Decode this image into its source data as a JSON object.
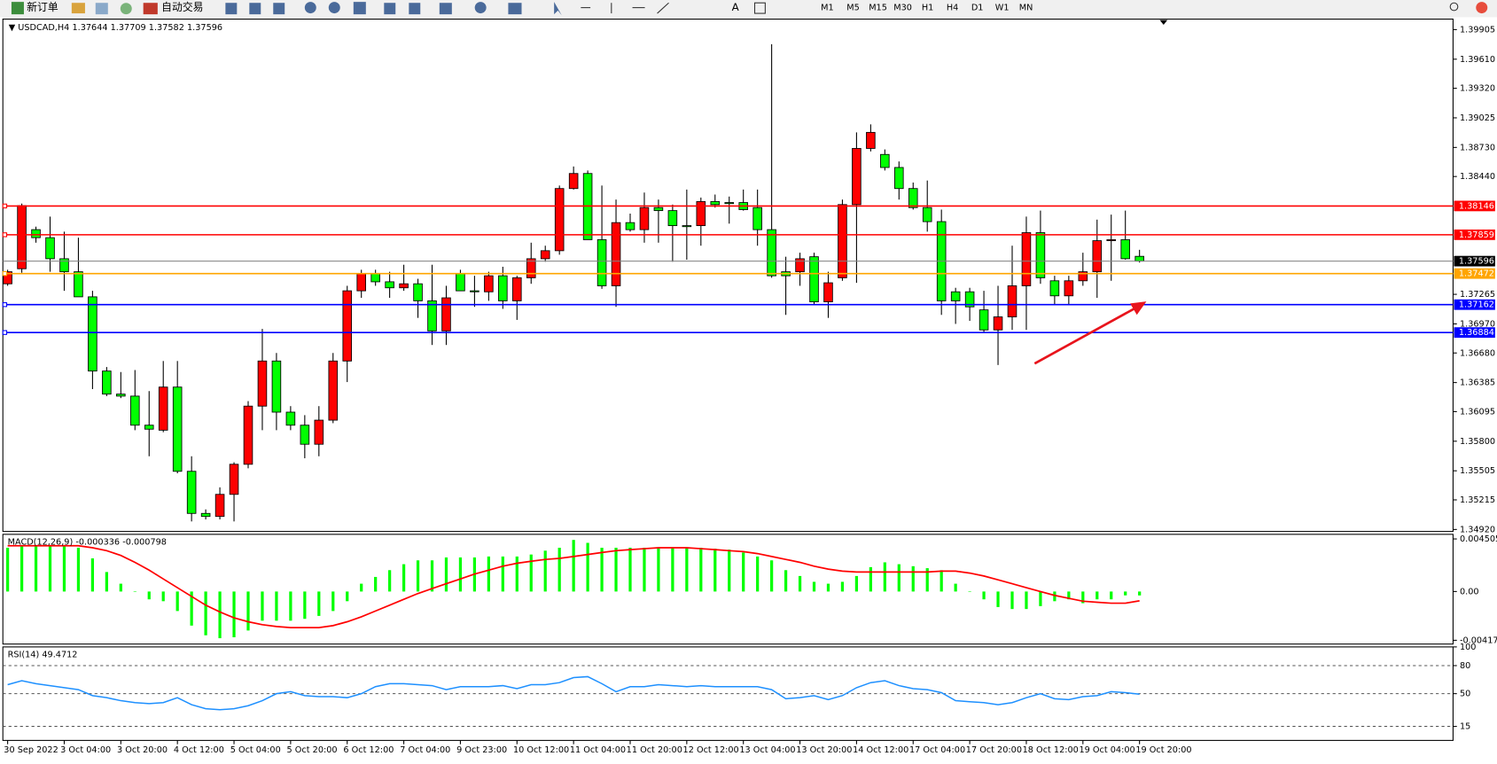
{
  "toolbar": {
    "new_order": "新订单",
    "auto_trading": "自动交易",
    "timeframes": [
      "M1",
      "M5",
      "M15",
      "M30",
      "H1",
      "H4",
      "D1",
      "W1",
      "MN"
    ]
  },
  "chart_data": [
    {
      "type": "candlestick",
      "title": "USDCAD,H4",
      "up_color": "#ff0000",
      "down_color": "#00ff00",
      "categories": [
        "30 Sep 2022",
        null,
        null,
        null,
        "3 Oct 04:00",
        null,
        null,
        null,
        "3 Oct 20:00",
        null,
        null,
        null,
        "4 Oct 12:00",
        null,
        null,
        null,
        "5 Oct 04:00",
        null,
        null,
        null,
        "5 Oct 20:00",
        null,
        null,
        null,
        "6 Oct 12:00",
        null,
        null,
        null,
        "7 Oct 04:00",
        null,
        null,
        null,
        "9 Oct 23:00",
        null,
        null,
        null,
        "10 Oct 12:00",
        null,
        null,
        null,
        "11 Oct 04:00",
        null,
        null,
        null,
        "11 Oct 20:00",
        null,
        null,
        null,
        "12 Oct 12:00",
        null,
        null,
        null,
        "13 Oct 04:00",
        null,
        null,
        null,
        "13 Oct 20:00",
        null,
        null,
        null,
        "14 Oct 12:00",
        null,
        null,
        null,
        "17 Oct 04:00",
        null,
        null,
        null,
        "17 Oct 20:00",
        null,
        null,
        null,
        "18 Oct 12:00",
        null,
        null,
        null,
        "19 Oct 04:00",
        null,
        null,
        null,
        "19 Oct 20:00"
      ],
      "open": [
        1.3737,
        1.3752,
        1.3791,
        1.3783,
        1.3762,
        1.3749,
        1.3724,
        1.365,
        1.3627,
        1.3625,
        1.3596,
        1.3591,
        1.3634,
        1.355,
        1.3508,
        1.3505,
        1.3527,
        1.3557,
        1.3615,
        1.366,
        1.3609,
        1.3596,
        1.3577,
        1.3601,
        1.366,
        1.373,
        1.3747,
        1.3739,
        1.3733,
        1.3737,
        1.372,
        1.369,
        1.3747,
        1.373,
        1.3729,
        1.3745,
        1.372,
        1.3743,
        1.3762,
        1.377,
        1.3832,
        1.3847,
        1.3781,
        1.3735,
        1.3798,
        1.3791,
        1.3813,
        1.381,
        1.3795,
        1.3795,
        1.3819,
        1.3818,
        1.3818,
        1.3813,
        1.3791,
        1.3749,
        1.3749,
        1.3764,
        1.3719,
        1.3743,
        1.3816,
        1.3872,
        1.3866,
        1.3853,
        1.3832,
        1.3813,
        1.3799,
        1.3729,
        1.3729,
        1.3711,
        1.3691,
        1.3704,
        1.3735,
        1.3788,
        1.374,
        1.3725,
        1.374,
        1.3749,
        1.378,
        1.3781,
        1.37644
      ],
      "high": [
        1.3751,
        1.3817,
        1.3794,
        1.3804,
        1.3789,
        1.3783,
        1.373,
        1.3654,
        1.3649,
        1.3651,
        1.363,
        1.366,
        1.366,
        1.3565,
        1.3512,
        1.3534,
        1.3559,
        1.362,
        1.3692,
        1.3668,
        1.3615,
        1.3606,
        1.3615,
        1.3668,
        1.3735,
        1.3751,
        1.3751,
        1.3749,
        1.3756,
        1.3742,
        1.3756,
        1.3735,
        1.3751,
        1.3745,
        1.3749,
        1.3754,
        1.3745,
        1.3778,
        1.3775,
        1.3835,
        1.3854,
        1.385,
        1.3835,
        1.3821,
        1.3807,
        1.3828,
        1.3821,
        1.3816,
        1.3831,
        1.3823,
        1.3826,
        1.3824,
        1.3831,
        1.3831,
        1.3976,
        1.3764,
        1.3768,
        1.3768,
        1.3749,
        1.3821,
        1.3888,
        1.3896,
        1.3871,
        1.3859,
        1.3838,
        1.384,
        1.3811,
        1.3733,
        1.3733,
        1.373,
        1.3735,
        1.3775,
        1.3804,
        1.381,
        1.3745,
        1.3745,
        1.3768,
        1.3801,
        1.3806,
        1.381,
        1.37709
      ],
      "low": [
        1.3735,
        1.3748,
        1.3778,
        1.3749,
        1.373,
        1.3724,
        1.3632,
        1.3625,
        1.3623,
        1.3591,
        1.3565,
        1.3589,
        1.3548,
        1.35,
        1.3502,
        1.3502,
        1.35,
        1.3553,
        1.3591,
        1.3591,
        1.3591,
        1.3563,
        1.3565,
        1.3598,
        1.3639,
        1.3723,
        1.3735,
        1.3723,
        1.373,
        1.3703,
        1.3676,
        1.3676,
        1.373,
        1.3714,
        1.372,
        1.3712,
        1.3701,
        1.3737,
        1.3759,
        1.3766,
        1.3831,
        1.3781,
        1.3732,
        1.3714,
        1.3789,
        1.3778,
        1.3778,
        1.3759,
        1.3761,
        1.3775,
        1.3813,
        1.3797,
        1.381,
        1.3775,
        1.3743,
        1.3706,
        1.3735,
        1.3716,
        1.3703,
        1.374,
        1.3738,
        1.3869,
        1.385,
        1.3821,
        1.3811,
        1.3789,
        1.3706,
        1.3697,
        1.37,
        1.3689,
        1.3656,
        1.3691,
        1.3691,
        1.3737,
        1.3716,
        1.3716,
        1.3735,
        1.3723,
        1.374,
        1.3761,
        1.37582
      ],
      "close": [
        1.3749,
        1.3815,
        1.3783,
        1.3762,
        1.3749,
        1.3724,
        1.365,
        1.3627,
        1.3625,
        1.3596,
        1.3592,
        1.3634,
        1.355,
        1.3508,
        1.3505,
        1.3527,
        1.3557,
        1.3615,
        1.366,
        1.3609,
        1.3596,
        1.3577,
        1.3601,
        1.366,
        1.373,
        1.3747,
        1.3739,
        1.3733,
        1.3737,
        1.372,
        1.369,
        1.3723,
        1.373,
        1.3729,
        1.3745,
        1.372,
        1.3743,
        1.3762,
        1.377,
        1.3832,
        1.3847,
        1.3781,
        1.3735,
        1.3798,
        1.3791,
        1.3813,
        1.381,
        1.3795,
        1.3794,
        1.3819,
        1.3816,
        1.3817,
        1.3811,
        1.3791,
        1.3745,
        1.3745,
        1.3762,
        1.3719,
        1.3738,
        1.3816,
        1.3872,
        1.3888,
        1.3853,
        1.3832,
        1.3813,
        1.3799,
        1.372,
        1.372,
        1.3714,
        1.3691,
        1.3704,
        1.3735,
        1.3788,
        1.3743,
        1.3725,
        1.374,
        1.3749,
        1.378,
        1.3781,
        1.3762,
        1.37596
      ],
      "ylim": [
        1.349,
        1.4001
      ],
      "yticks": [
        1.39905,
        {
          "value": 1.3961,
          "label": "1.39610"
        },
        {
          "value": 1.3932,
          "label": "1.39320"
        },
        1.39025,
        {
          "value": 1.3873,
          "label": "1.38730"
        },
        {
          "value": 1.3844,
          "label": "1.38440"
        },
        1.37265,
        {
          "value": 1.3697,
          "label": "1.36970"
        },
        {
          "value": 1.3668,
          "label": "1.36680"
        },
        1.36385,
        1.36095,
        {
          "value": 1.358,
          "label": "1.35800"
        },
        1.35505,
        1.35215,
        {
          "value": 1.3492,
          "label": "1.34920"
        }
      ],
      "hlines": [
        {
          "value": 1.38146,
          "color": "#ff0000"
        },
        {
          "value": 1.37859,
          "color": "#ff0000"
        },
        {
          "value": 1.37472,
          "color": "#ffa500"
        },
        {
          "value": 1.37162,
          "color": "#0000ff"
        },
        {
          "value": 1.36884,
          "color": "#0000ff"
        }
      ],
      "price_line_color": "#808080"
    },
    {
      "type": "macd",
      "title": "MACD(12,26,9)",
      "series": [
        {
          "kind": "bar",
          "color": "#00ff00",
          "values": [
            0.00375,
            0.00392,
            0.00392,
            0.00392,
            0.00392,
            0.00375,
            0.00284,
            0.00167,
            0.00067,
            0,
            -0.00067,
            -0.00083,
            -0.00167,
            -0.00292,
            -0.00375,
            -0.004,
            -0.00392,
            -0.00334,
            -0.0025,
            -0.0025,
            -0.0025,
            -0.00234,
            -0.00209,
            -0.00167,
            -0.00083,
            0.00067,
            0.00125,
            0.00183,
            0.00234,
            0.00267,
            0.00267,
            0.00292,
            0.00292,
            0.00292,
            0.003,
            0.003,
            0.003,
            0.00317,
            0.0035,
            0.00375,
            0.00442,
            0.00417,
            0.00375,
            0.00375,
            0.00375,
            0.00375,
            0.00375,
            0.00375,
            0.00375,
            0.00375,
            0.00367,
            0.00359,
            0.00334,
            0.003,
            0.00267,
            0.00183,
            0.00133,
            0.00083,
            0.00067,
            0.00083,
            0.00133,
            0.00209,
            0.0025,
            0.00234,
            0.00217,
            0.002,
            0.00183,
            0.00067,
            0,
            -0.00067,
            -0.00133,
            -0.0015,
            -0.0015,
            -0.00125,
            -0.00083,
            -0.00067,
            -0.001,
            -0.00067,
            -0.00067,
            -0.00033,
            -0.000336
          ]
        },
        {
          "kind": "line",
          "color": "#ff0000",
          "values": [
            0.00392,
            0.00392,
            0.00392,
            0.00392,
            0.00392,
            0.00392,
            0.00375,
            0.0035,
            0.00309,
            0.0025,
            0.00183,
            0.00108,
            0.00033,
            -0.00042,
            -0.00117,
            -0.00175,
            -0.00225,
            -0.00259,
            -0.00284,
            -0.003,
            -0.00309,
            -0.00309,
            -0.00309,
            -0.00292,
            -0.00259,
            -0.00217,
            -0.00167,
            -0.00117,
            -0.00067,
            -0.00017,
            0.00025,
            0.00067,
            0.00108,
            0.0015,
            0.00183,
            0.00217,
            0.00242,
            0.00259,
            0.00275,
            0.00284,
            0.003,
            0.00317,
            0.00334,
            0.0035,
            0.00359,
            0.00367,
            0.00375,
            0.00375,
            0.00375,
            0.00367,
            0.00359,
            0.0035,
            0.00342,
            0.00325,
            0.003,
            0.00275,
            0.0025,
            0.00217,
            0.00192,
            0.00175,
            0.00167,
            0.00167,
            0.00167,
            0.00167,
            0.00167,
            0.00167,
            0.00175,
            0.00175,
            0.00158,
            0.00133,
            0.001,
            0.00067,
            0.00033,
            0,
            -0.00033,
            -0.00058,
            -0.00083,
            -0.00092,
            -0.001,
            -0.001,
            -0.000798
          ]
        }
      ],
      "ylim": [
        -0.0045,
        0.0049
      ],
      "yticks": [
        0.004505,
        {
          "value": 0,
          "label": "0.00"
        },
        -0.004177
      ]
    },
    {
      "type": "line",
      "title": "RSI(14)",
      "series": [
        {
          "color": "#1e90ff",
          "values": [
            59.6,
            63.9,
            60.7,
            58.6,
            56.4,
            54.3,
            47.9,
            45.7,
            42.5,
            40.4,
            39.3,
            40.4,
            45.7,
            38.2,
            33.9,
            32.8,
            33.9,
            37.1,
            42.5,
            50,
            52.1,
            47.9,
            46.8,
            46.8,
            45.7,
            50,
            57.5,
            60.7,
            60.7,
            59.6,
            58.6,
            54.3,
            57.5,
            57.5,
            57.5,
            58.6,
            55.4,
            59.6,
            59.6,
            61.8,
            67.2,
            68.2,
            60.7,
            52.1,
            57.5,
            57.5,
            59.6,
            58.6,
            57.5,
            58.6,
            57.5,
            57.5,
            57.5,
            57.5,
            54.3,
            44.6,
            45.7,
            47.9,
            43.6,
            47.9,
            56.4,
            61.8,
            63.9,
            58.6,
            55.4,
            54.3,
            51.1,
            42.5,
            41.4,
            40.4,
            38.2,
            40.4,
            45.7,
            50,
            44.6,
            43.6,
            46.8,
            47.9,
            52.1,
            51.1,
            49.4712
          ]
        }
      ],
      "ylim": [
        0,
        100
      ],
      "yticks": [
        100,
        80,
        50,
        15
      ],
      "levels": [
        80,
        50,
        15
      ]
    }
  ]
}
